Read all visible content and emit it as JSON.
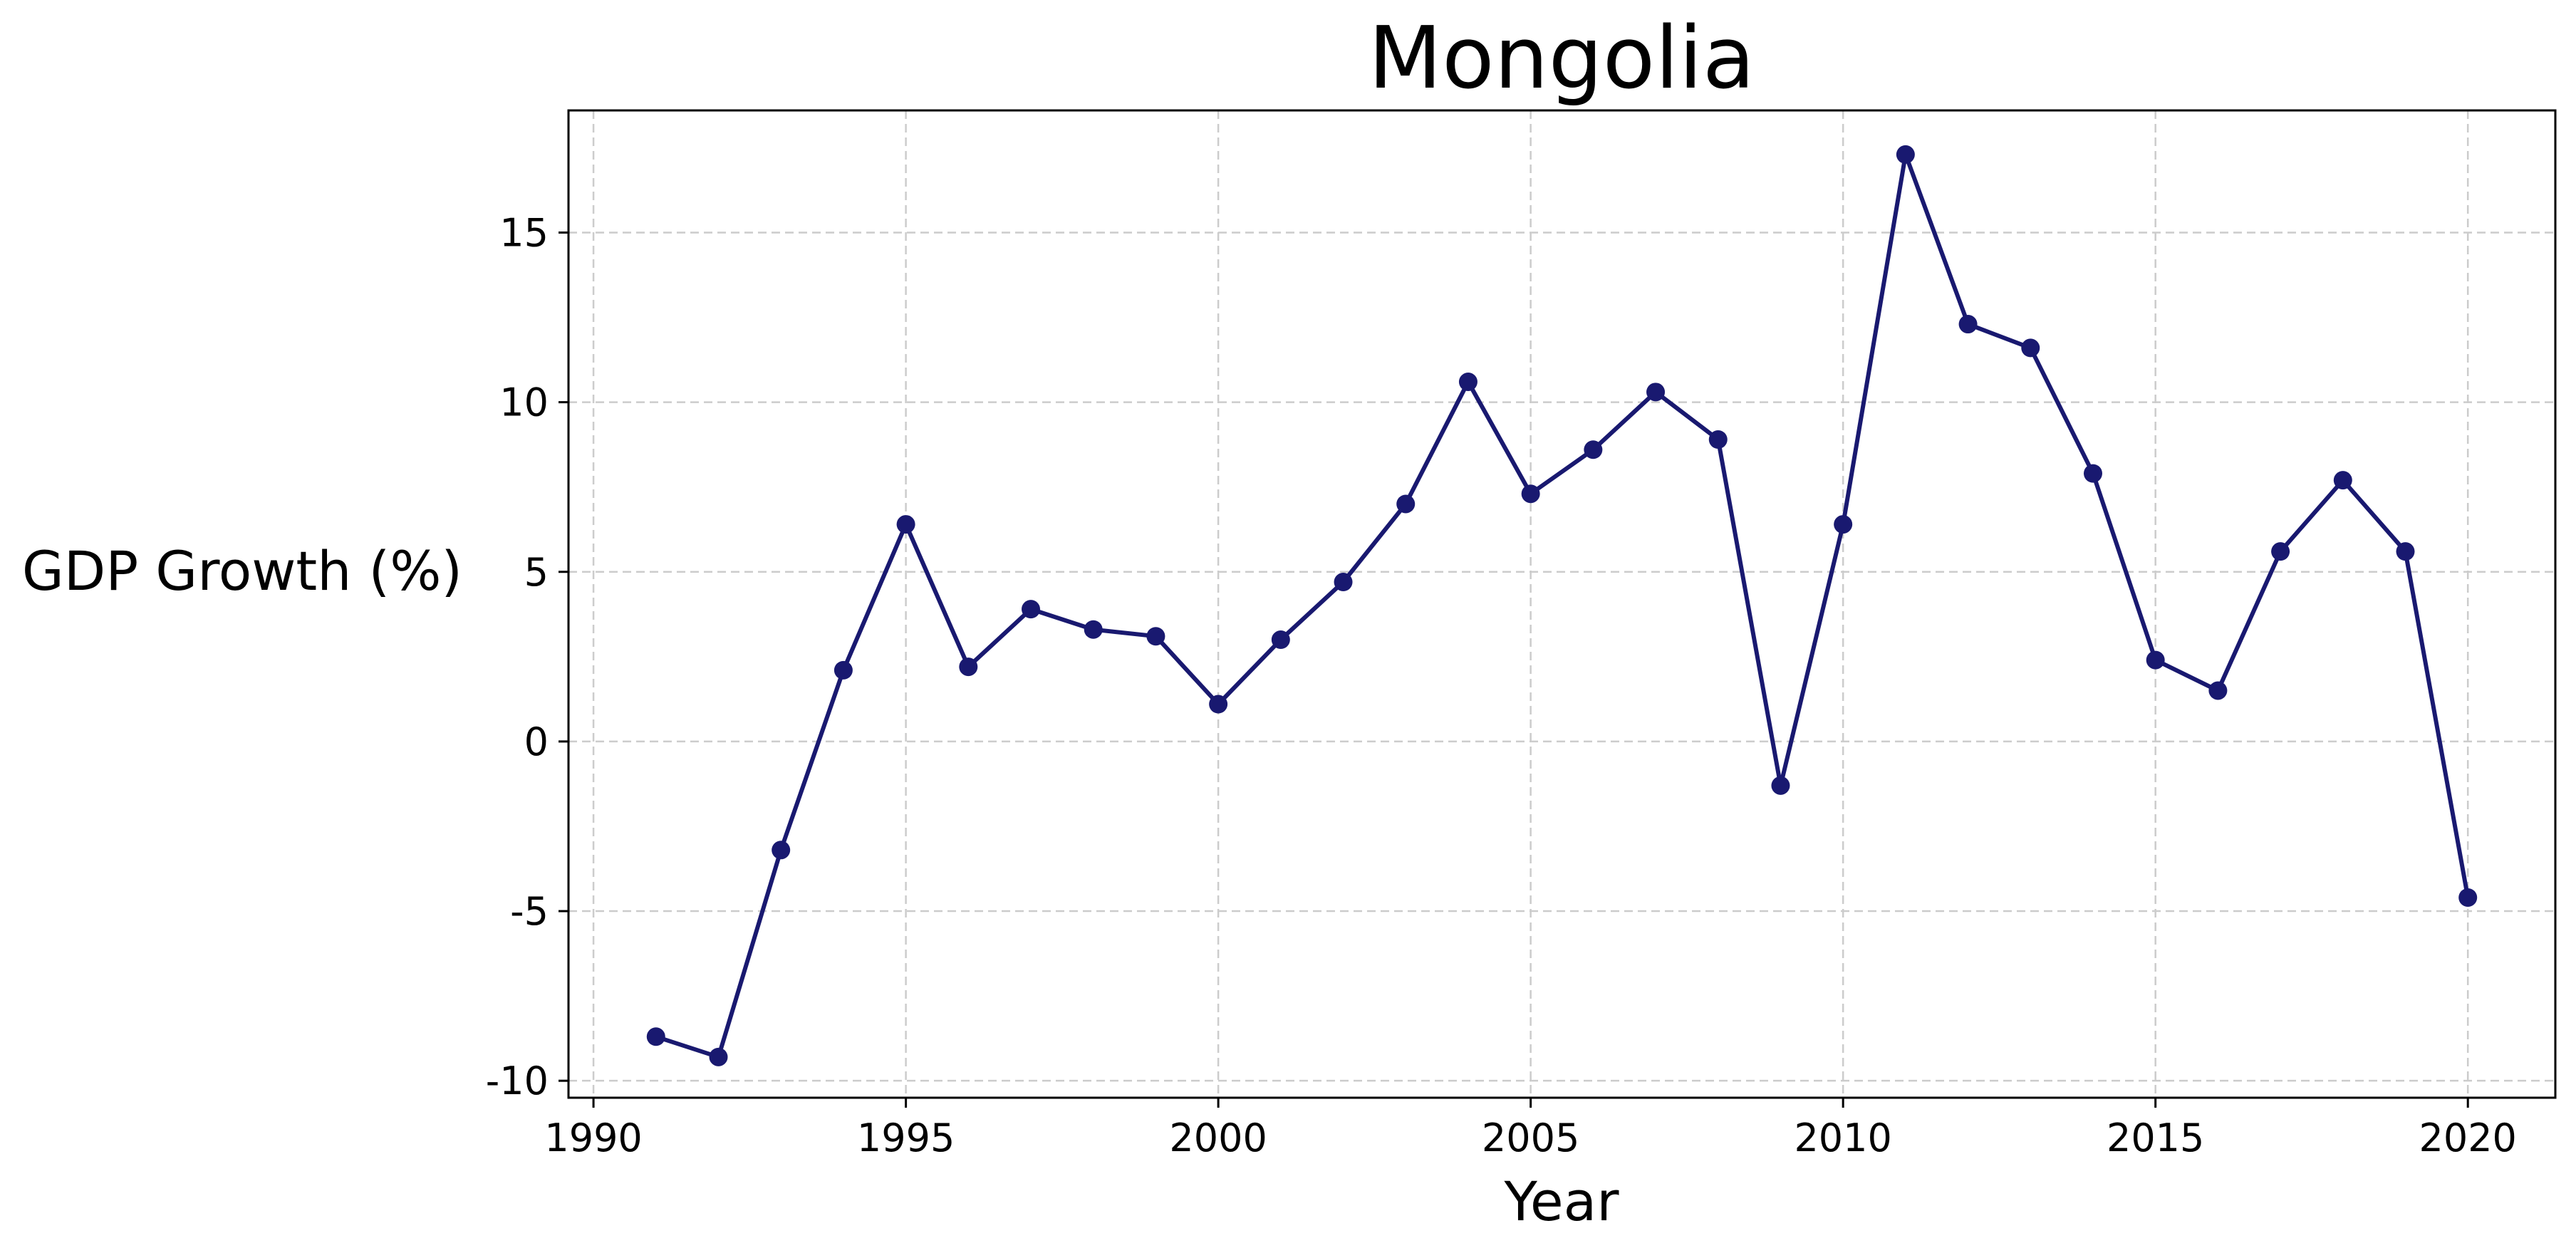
{
  "chart_data": {
    "type": "line",
    "title": "Mongolia",
    "xlabel": "Year",
    "ylabel": "GDP Growth (%)",
    "xlim": [
      1989.6,
      2021.4
    ],
    "ylim": [
      -10.5,
      18.6
    ],
    "x_ticks": [
      1990,
      1995,
      2000,
      2005,
      2010,
      2015,
      2020
    ],
    "x_tick_labels": [
      "1990",
      "1995",
      "2000",
      "2005",
      "2010",
      "2015",
      "2020"
    ],
    "y_ticks": [
      -10,
      -5,
      0,
      5,
      10,
      15
    ],
    "y_tick_labels": [
      "-10",
      "-5",
      "0",
      "5",
      "10",
      "15"
    ],
    "grid": true,
    "legend": false,
    "series": [
      {
        "color": "#191970",
        "marker": "circle",
        "x": [
          1991,
          1992,
          1993,
          1994,
          1995,
          1996,
          1997,
          1998,
          1999,
          2000,
          2001,
          2002,
          2003,
          2004,
          2005,
          2006,
          2007,
          2008,
          2009,
          2010,
          2011,
          2012,
          2013,
          2014,
          2015,
          2016,
          2017,
          2018,
          2019,
          2020
        ],
        "y": [
          -8.7,
          -9.3,
          -3.2,
          2.1,
          6.4,
          2.2,
          3.9,
          3.3,
          3.1,
          1.1,
          3.0,
          4.7,
          7.0,
          10.6,
          7.3,
          8.6,
          10.3,
          8.9,
          -1.3,
          6.4,
          17.3,
          12.3,
          11.6,
          7.9,
          2.4,
          1.5,
          5.6,
          7.7,
          5.6,
          -4.6
        ]
      }
    ],
    "colors": {
      "line": "#191970",
      "grid": "#cccccc",
      "frame": "#000000"
    }
  }
}
